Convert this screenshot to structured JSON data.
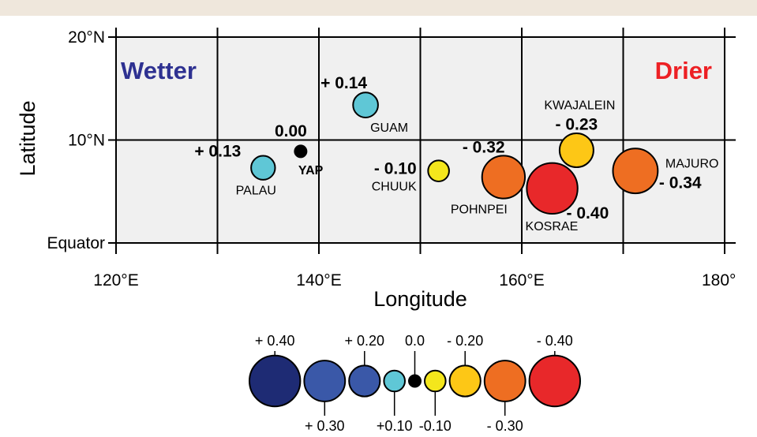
{
  "chart_data": {
    "type": "scatter",
    "xlabel": "Longitude",
    "ylabel": "Latitude",
    "xlim": [
      120,
      180
    ],
    "ylim": [
      0,
      20
    ],
    "x_ticks": [
      {
        "value": 120,
        "label": "120°E"
      },
      {
        "value": 140,
        "label": "140°E"
      },
      {
        "value": 160,
        "label": "160°E"
      },
      {
        "value": 180,
        "label": "180°"
      }
    ],
    "y_ticks": [
      {
        "value": 20,
        "label": "20°N"
      },
      {
        "value": 10,
        "label": "10°N"
      },
      {
        "value": 0,
        "label": "Equator"
      }
    ],
    "grid": true,
    "grid_lon": [
      120,
      130,
      140,
      150,
      160,
      170,
      180
    ],
    "grid_lat": [
      0,
      10,
      20
    ],
    "annotations": {
      "wetter": "Wetter",
      "drier": "Drier"
    },
    "points": [
      {
        "name": "PALAU",
        "lon": 134.5,
        "lat": 7.3,
        "value": 0.13,
        "value_label": "+ 0.13",
        "color": "#5fc7d6"
      },
      {
        "name": "YAP",
        "lon": 138.2,
        "lat": 8.9,
        "value": 0.0,
        "value_label": "0.00",
        "color": "#000000"
      },
      {
        "name": "GUAM",
        "lon": 144.6,
        "lat": 13.4,
        "value": 0.14,
        "value_label": "+ 0.14",
        "color": "#5fc7d6"
      },
      {
        "name": "CHUUK",
        "lon": 151.8,
        "lat": 7.0,
        "value": -0.1,
        "value_label": "- 0.10",
        "color": "#f4e61c"
      },
      {
        "name": "POHNPEI",
        "lon": 158.2,
        "lat": 6.4,
        "value": -0.32,
        "value_label": "- 0.32",
        "color": "#ee6e22"
      },
      {
        "name": "KOSRAE",
        "lon": 163.0,
        "lat": 5.3,
        "value": -0.4,
        "value_label": "- 0.40",
        "color": "#e8282a"
      },
      {
        "name": "KWAJALEIN",
        "lon": 165.4,
        "lat": 9.0,
        "value": -0.23,
        "value_label": "- 0.23",
        "color": "#fdc716"
      },
      {
        "name": "MAJURO",
        "lon": 171.2,
        "lat": 7.0,
        "value": -0.34,
        "value_label": "- 0.34",
        "color": "#ee6e22"
      }
    ],
    "size_legend": [
      {
        "value": 0.4,
        "label": "+ 0.40",
        "color": "#1e2b74"
      },
      {
        "value": 0.3,
        "label": "+ 0.30",
        "color": "#3a58a8"
      },
      {
        "value": 0.2,
        "label": "+ 0.20",
        "color": "#3a58a8"
      },
      {
        "value": 0.1,
        "label": "+0.10",
        "color": "#5fc7d6"
      },
      {
        "value": 0.0,
        "label": "0.0",
        "color": "#000000"
      },
      {
        "value": -0.1,
        "label": "-0.10",
        "color": "#f4e61c"
      },
      {
        "value": -0.2,
        "label": "- 0.20",
        "color": "#fdc716"
      },
      {
        "value": -0.3,
        "label": "- 0.30",
        "color": "#ee6e22"
      },
      {
        "value": -0.4,
        "label": "- 0.40",
        "color": "#e8282a"
      }
    ]
  },
  "colors": {
    "wetter": "#2e3191",
    "drier": "#ed2024",
    "plot_bg": "#f0f0f0",
    "top_band": "#efe7dc"
  }
}
